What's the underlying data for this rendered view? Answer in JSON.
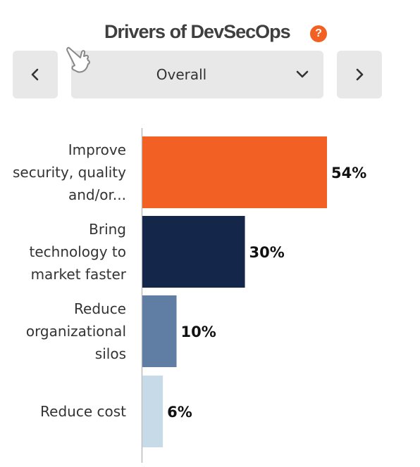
{
  "header": {
    "title": "Drivers of DevSecOps",
    "help_icon": "?"
  },
  "controls": {
    "selected": "Overall"
  },
  "chart_data": {
    "type": "bar",
    "orientation": "horizontal",
    "categories": [
      [
        "Improve",
        "security, quality",
        "and/or..."
      ],
      [
        "Bring",
        "technology to",
        "market faster"
      ],
      [
        "Reduce",
        "organizational",
        "silos"
      ],
      [
        "Reduce cost"
      ]
    ],
    "values": [
      54,
      30,
      10,
      6
    ],
    "value_labels": [
      "54%",
      "30%",
      "10%",
      "6%"
    ],
    "colors": [
      "#f26024",
      "#14274a",
      "#607ea3",
      "#c6dae8"
    ],
    "xlim": [
      0,
      60
    ],
    "grid": false,
    "legend": "none"
  }
}
